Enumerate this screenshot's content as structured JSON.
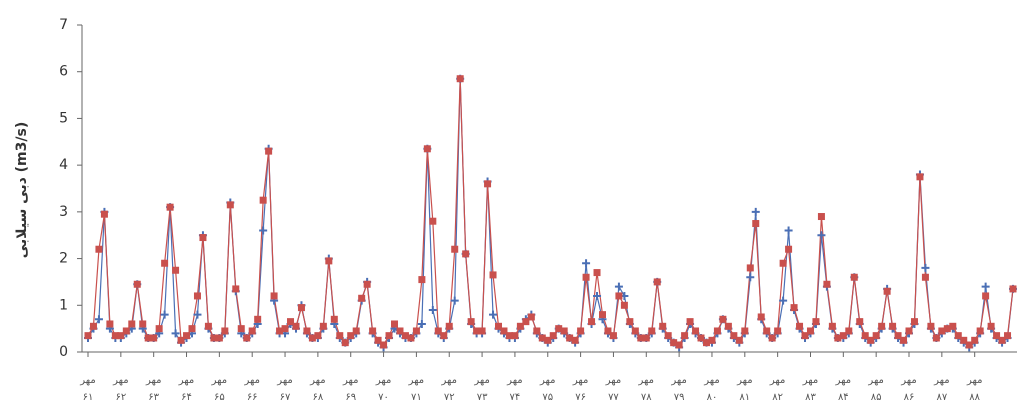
{
  "chart_data": {
    "type": "line",
    "y_label": "دبی سیلابی (m3/s)",
    "categories": [
      "مهر ۶۱",
      null,
      null,
      null,
      null,
      null,
      "مهر ۶۲",
      null,
      null,
      null,
      null,
      null,
      "مهر ۶۳",
      null,
      null,
      null,
      null,
      null,
      "مهر ۶۴",
      null,
      null,
      null,
      null,
      null,
      "مهر ۶۵",
      null,
      null,
      null,
      null,
      null,
      "مهر ۶۶",
      null,
      null,
      null,
      null,
      null,
      "مهر ۶۷",
      null,
      null,
      null,
      null,
      null,
      "مهر ۶۸",
      null,
      null,
      null,
      null,
      null,
      "مهر ۶۹",
      null,
      null,
      null,
      null,
      null,
      "مهر ۷۰",
      null,
      null,
      null,
      null,
      null,
      "مهر ۷۱",
      null,
      null,
      null,
      null,
      null,
      "مهر ۷۲",
      null,
      null,
      null,
      null,
      null,
      "مهر ۷۳",
      null,
      null,
      null,
      null,
      null,
      "مهر ۷۴",
      null,
      null,
      null,
      null,
      null,
      "مهر ۷۵",
      null,
      null,
      null,
      null,
      null,
      "مهر ۷۶",
      null,
      null,
      null,
      null,
      null,
      "مهر ۷۷",
      null,
      null,
      null,
      null,
      null,
      "مهر ۷۸",
      null,
      null,
      null,
      null,
      null,
      "مهر ۷۹",
      null,
      null,
      null,
      null,
      null,
      "مهر ۸۰",
      null,
      null,
      null,
      null,
      null,
      "مهر ۸۱",
      null,
      null,
      null,
      null,
      null,
      "مهر ۸۲",
      null,
      null,
      null,
      null,
      null,
      "مهر ۸۳",
      null,
      null,
      null,
      null,
      null,
      "مهر ۸۴",
      null,
      null,
      null,
      null,
      null,
      "مهر ۸۵",
      null,
      null,
      null,
      null,
      null,
      "مهر ۸۶",
      null,
      null,
      null,
      null,
      null,
      "مهر ۸۷",
      null,
      null,
      null,
      null,
      null,
      "مهر ۸۸",
      null,
      null,
      null,
      null,
      null,
      null,
      null
    ],
    "series": [
      {
        "color": "#4a6fb5",
        "marker": "plus",
        "values": [
          0.3,
          0.5,
          0.7,
          3.0,
          0.5,
          0.3,
          0.3,
          0.4,
          0.5,
          1.45,
          0.5,
          0.3,
          0.3,
          0.4,
          0.8,
          3.1,
          0.4,
          0.2,
          0.3,
          0.4,
          0.8,
          2.5,
          0.5,
          0.3,
          0.3,
          0.4,
          3.2,
          1.3,
          0.4,
          0.3,
          0.4,
          0.6,
          2.6,
          4.35,
          1.1,
          0.4,
          0.4,
          0.6,
          0.5,
          1.0,
          0.4,
          0.3,
          0.3,
          0.5,
          2.0,
          0.6,
          0.3,
          0.2,
          0.3,
          0.4,
          1.1,
          1.5,
          0.4,
          0.2,
          0.1,
          0.3,
          0.5,
          0.4,
          0.3,
          0.3,
          0.4,
          0.6,
          4.35,
          0.9,
          0.4,
          0.3,
          0.5,
          1.1,
          5.85,
          2.1,
          0.6,
          0.4,
          0.4,
          3.65,
          0.8,
          0.5,
          0.4,
          0.3,
          0.3,
          0.5,
          0.7,
          0.8,
          0.4,
          0.3,
          0.2,
          0.3,
          0.5,
          0.4,
          0.3,
          0.2,
          0.4,
          1.9,
          0.6,
          1.2,
          0.7,
          0.4,
          0.3,
          1.4,
          1.2,
          0.6,
          0.4,
          0.3,
          0.3,
          0.4,
          1.5,
          0.5,
          0.3,
          0.2,
          0.1,
          0.3,
          0.6,
          0.4,
          0.3,
          0.2,
          0.2,
          0.4,
          0.7,
          0.5,
          0.3,
          0.2,
          0.4,
          1.6,
          3.0,
          0.7,
          0.4,
          0.3,
          0.4,
          1.1,
          2.6,
          0.9,
          0.5,
          0.3,
          0.4,
          0.6,
          2.5,
          1.4,
          0.5,
          0.3,
          0.3,
          0.4,
          1.6,
          0.6,
          0.3,
          0.2,
          0.3,
          0.5,
          1.35,
          0.5,
          0.3,
          0.2,
          0.4,
          0.6,
          3.8,
          1.8,
          0.5,
          0.3,
          0.4,
          0.5,
          0.5,
          0.3,
          0.2,
          0.1,
          0.2,
          0.4,
          1.4,
          0.5,
          0.3,
          0.2,
          0.3,
          1.35
        ]
      },
      {
        "color": "#c9504d",
        "marker": "square",
        "values": [
          0.35,
          0.55,
          2.2,
          2.95,
          0.6,
          0.35,
          0.35,
          0.45,
          0.6,
          1.45,
          0.6,
          0.3,
          0.3,
          0.5,
          1.9,
          3.1,
          1.75,
          0.25,
          0.35,
          0.5,
          1.2,
          2.45,
          0.55,
          0.3,
          0.3,
          0.45,
          3.15,
          1.35,
          0.5,
          0.3,
          0.45,
          0.7,
          3.25,
          4.3,
          1.2,
          0.45,
          0.5,
          0.65,
          0.55,
          0.95,
          0.45,
          0.3,
          0.35,
          0.55,
          1.95,
          0.7,
          0.35,
          0.2,
          0.35,
          0.45,
          1.15,
          1.45,
          0.45,
          0.25,
          0.15,
          0.35,
          0.6,
          0.45,
          0.35,
          0.3,
          0.45,
          1.55,
          4.35,
          2.8,
          0.45,
          0.35,
          0.55,
          2.2,
          5.85,
          2.1,
          0.65,
          0.45,
          0.45,
          3.6,
          1.65,
          0.55,
          0.45,
          0.35,
          0.35,
          0.55,
          0.65,
          0.75,
          0.45,
          0.3,
          0.25,
          0.35,
          0.5,
          0.45,
          0.3,
          0.25,
          0.45,
          1.6,
          0.65,
          1.7,
          0.8,
          0.45,
          0.35,
          1.2,
          1.0,
          0.65,
          0.45,
          0.3,
          0.3,
          0.45,
          1.5,
          0.55,
          0.35,
          0.2,
          0.15,
          0.35,
          0.65,
          0.45,
          0.3,
          0.2,
          0.25,
          0.45,
          0.7,
          0.55,
          0.35,
          0.25,
          0.45,
          1.8,
          2.75,
          0.75,
          0.45,
          0.3,
          0.45,
          1.9,
          2.2,
          0.95,
          0.55,
          0.35,
          0.45,
          0.65,
          2.9,
          1.45,
          0.55,
          0.3,
          0.35,
          0.45,
          1.6,
          0.65,
          0.35,
          0.25,
          0.35,
          0.55,
          1.3,
          0.55,
          0.35,
          0.25,
          0.45,
          0.65,
          3.75,
          1.6,
          0.55,
          0.3,
          0.45,
          0.5,
          0.55,
          0.35,
          0.25,
          0.15,
          0.25,
          0.45,
          1.2,
          0.55,
          0.35,
          0.25,
          0.35,
          1.35
        ]
      }
    ],
    "ylim": [
      0,
      7
    ],
    "yticks": [
      0,
      1,
      2,
      3,
      4,
      5,
      6,
      7
    ]
  }
}
